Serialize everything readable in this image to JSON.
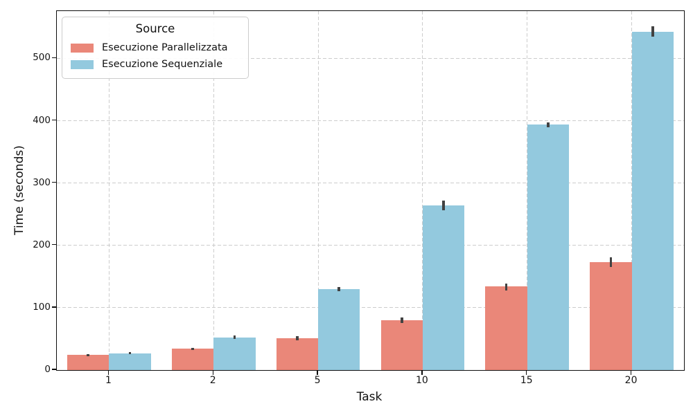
{
  "figure": {
    "xlabel": "Task",
    "ylabel": "Time (seconds)"
  },
  "legend": {
    "title": "Source"
  },
  "colors": {
    "parallel_bar": "#ea8779",
    "sequential_bar": "#93c9de",
    "errorbar": "#424242",
    "grid": "#cccccc",
    "spine": "#0d0d0d"
  },
  "chart_data": {
    "type": "bar",
    "title": "",
    "xlabel": "Task",
    "ylabel": "Time (seconds)",
    "categories": [
      "1",
      "2",
      "5",
      "10",
      "15",
      "20"
    ],
    "series": [
      {
        "name": "Esecuzione Parallelizzata",
        "color": "#ea8779",
        "values": [
          24,
          34,
          51,
          80,
          134,
          173
        ],
        "error_low": [
          22,
          32,
          48,
          76,
          128,
          165
        ],
        "error_high": [
          26,
          36,
          54,
          84,
          139,
          181
        ]
      },
      {
        "name": "Esecuzione Sequenziale",
        "color": "#93c9de",
        "values": [
          27,
          52,
          130,
          264,
          394,
          543
        ],
        "error_low": [
          25,
          50,
          126,
          256,
          390,
          535
        ],
        "error_high": [
          29,
          55,
          133,
          272,
          397,
          552
        ]
      }
    ],
    "ylim": [
      0,
      576
    ],
    "yticks": [
      0,
      100,
      200,
      300,
      400,
      500
    ],
    "grid": true,
    "grid_style": "dashed",
    "legend_title": "Source",
    "legend_position": "upper left",
    "errorbars": true
  }
}
